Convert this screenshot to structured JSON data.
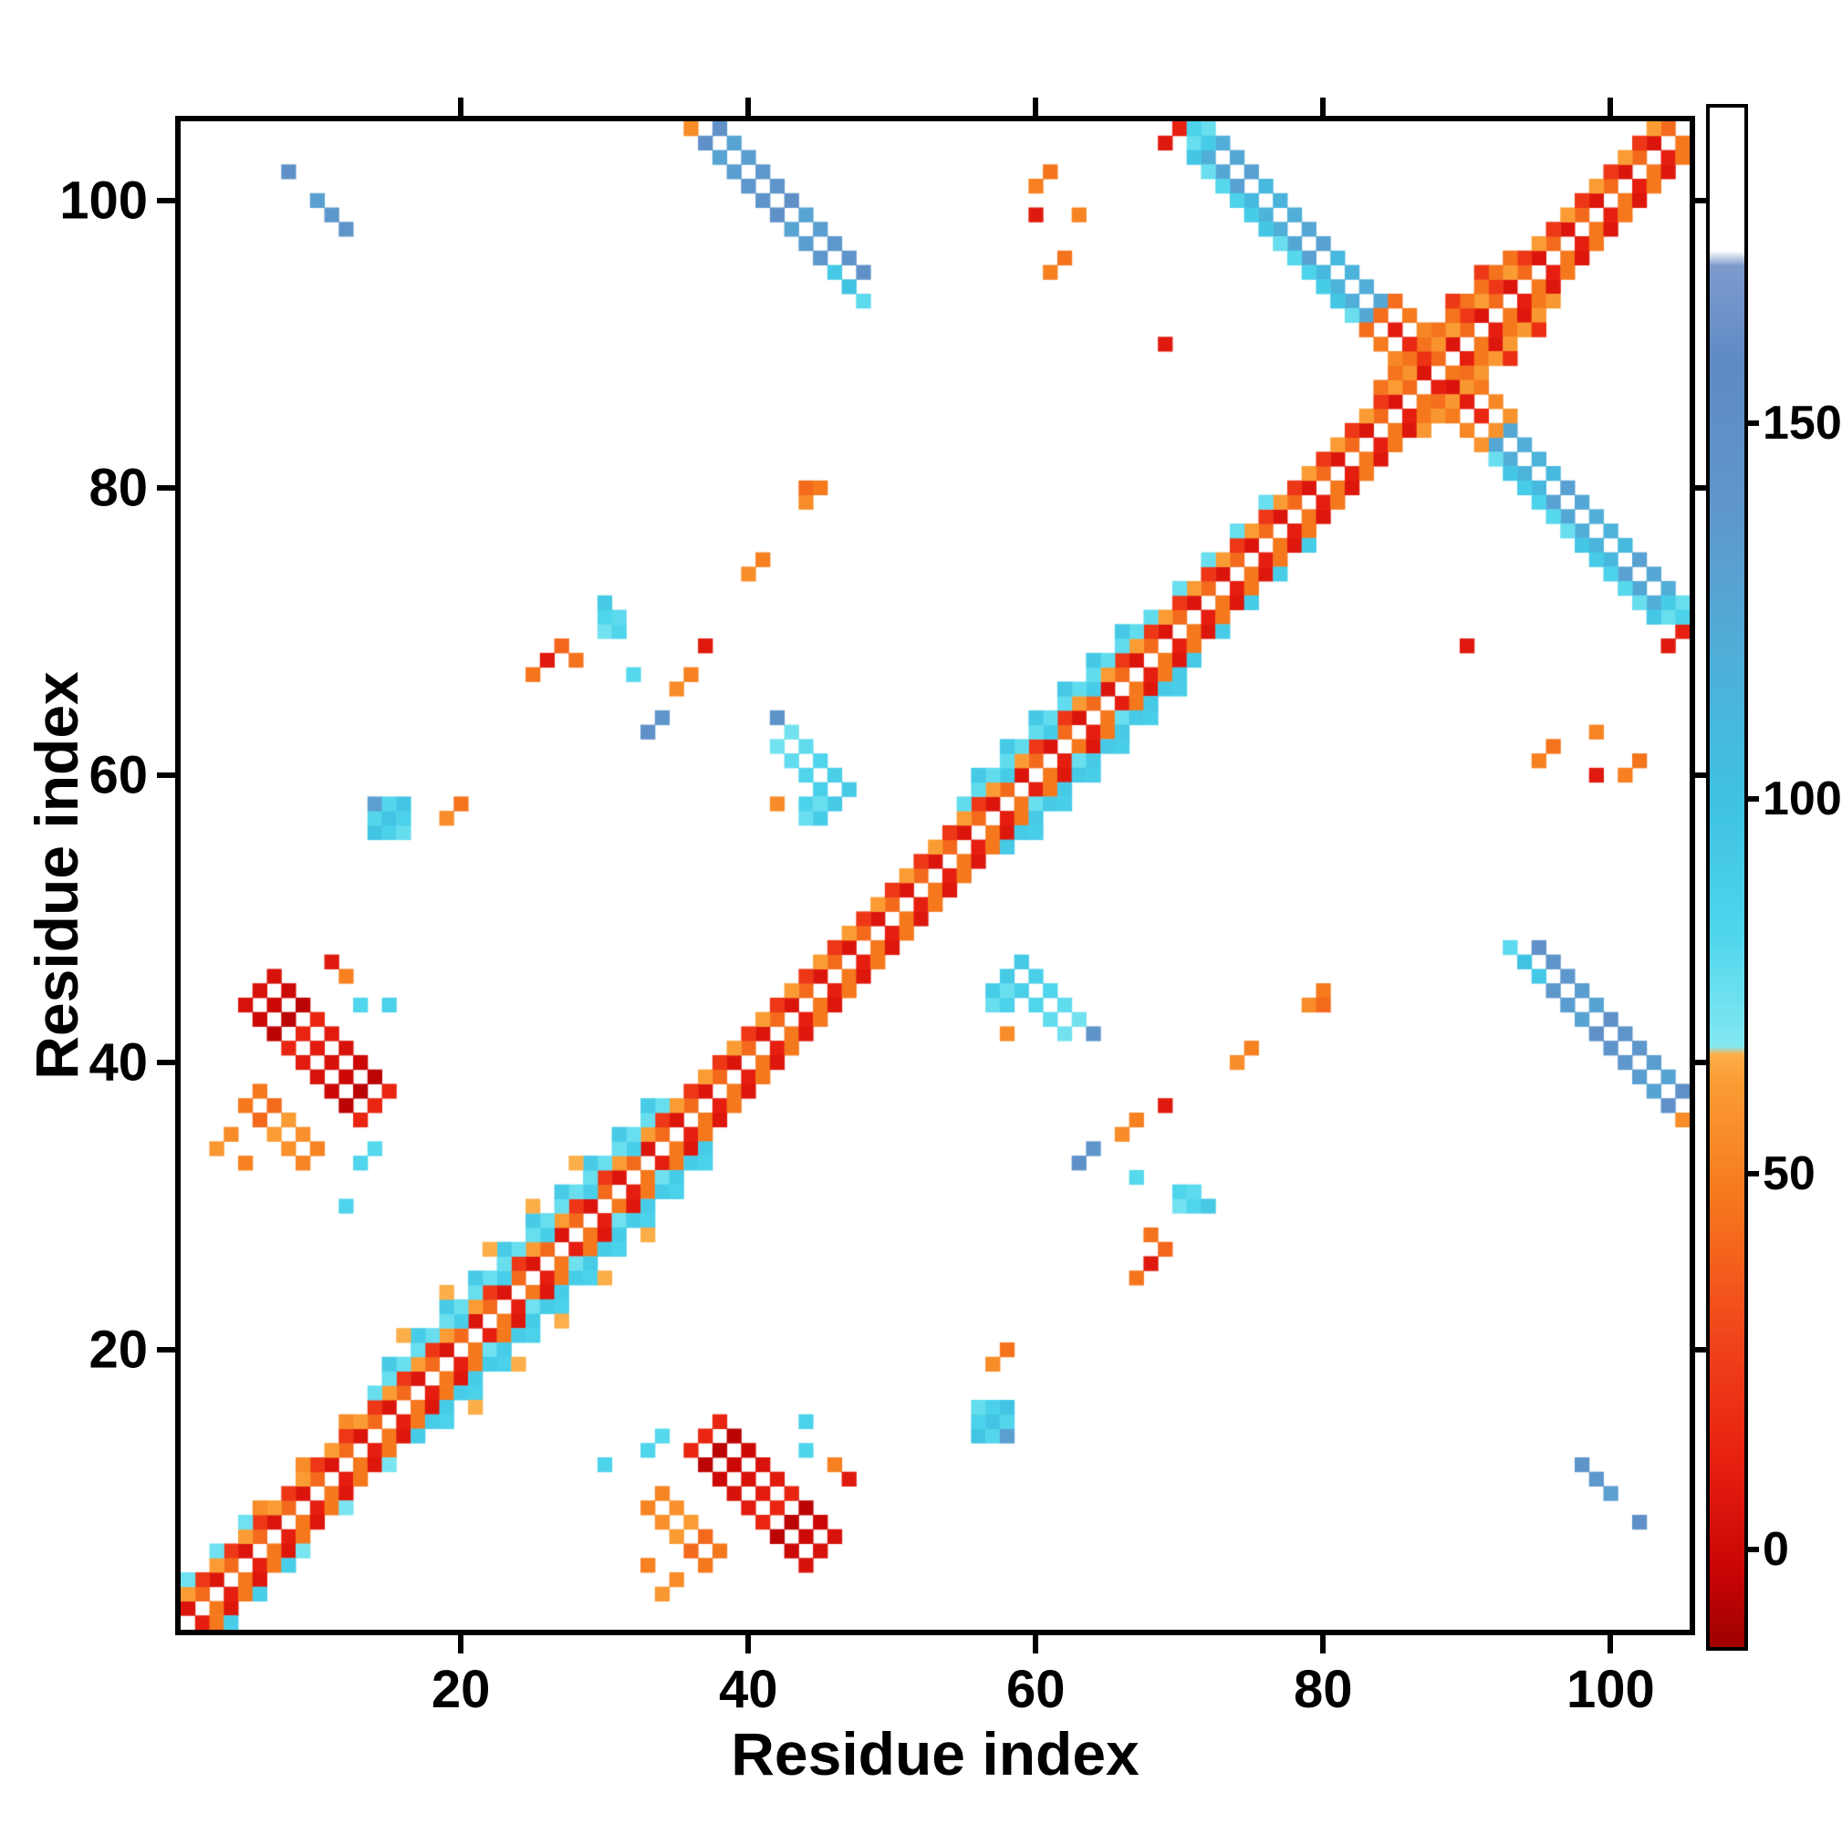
{
  "figure": {
    "background": "#ffffff"
  },
  "chart_data": {
    "type": "heatmap",
    "title": "",
    "xlabel": "Residue index",
    "ylabel": "Residue index",
    "x_range": [
      0.5,
      105.5
    ],
    "y_range": [
      0.5,
      105.5
    ],
    "n_residues": 105,
    "x_ticks": [
      20,
      40,
      60,
      80,
      100
    ],
    "y_ticks": [
      20,
      40,
      60,
      80,
      100
    ],
    "grid": false,
    "legend": "colorbar-right",
    "background_value_color": "#ffffff",
    "colorbar": {
      "ticks": [
        0,
        50,
        100,
        150
      ],
      "domain": [
        -13,
        192
      ],
      "stops": [
        [
          -13,
          "#9e0000"
        ],
        [
          -3,
          "#c80505"
        ],
        [
          12,
          "#e82010"
        ],
        [
          30,
          "#f1491c"
        ],
        [
          48,
          "#f67b1d"
        ],
        [
          62,
          "#fa9c33"
        ],
        [
          66,
          "#fcae49"
        ],
        [
          67,
          "#84e9f2"
        ],
        [
          82,
          "#4fd5ec"
        ],
        [
          100,
          "#3ec1e2"
        ],
        [
          118,
          "#4fb0da"
        ],
        [
          138,
          "#5e97cc"
        ],
        [
          158,
          "#5f8ac4"
        ],
        [
          171,
          "#7d9bcd"
        ],
        [
          173,
          "#ffffff"
        ],
        [
          192,
          "#ffffff"
        ]
      ]
    },
    "cells_encoding": "contact map, symmetric about main diagonal; diag_runs: cells (i,i+o) for i=f..t step s, mirrored; anti_runs: anti-diagonal runs from (x,y) length l, thickness t, m=mirror; rects: blocks; cells: [x,y,value,mirror]; value mapped through colorbar stops; main diagonal i=j is white",
    "diag_runs": [
      {
        "f": 1,
        "t": 104,
        "o": 1,
        "v": 6,
        "s": 2
      },
      {
        "f": 2,
        "t": 104,
        "o": 1,
        "v": 42,
        "s": 2
      },
      {
        "f": 1,
        "t": 103,
        "o": 2,
        "v": 52,
        "s": 2
      },
      {
        "f": 2,
        "t": 103,
        "o": 2,
        "v": 12,
        "s": 2
      },
      {
        "f": 3,
        "t": 12,
        "o": 3,
        "v": 60,
        "s": 3
      },
      {
        "f": 1,
        "t": 5,
        "o": 3,
        "v": 78,
        "s": 2
      },
      {
        "f": 14,
        "t": 34,
        "o": 3,
        "v": 80,
        "s": 1
      },
      {
        "f": 15,
        "t": 33,
        "o": 4,
        "v": 86,
        "s": 2
      },
      {
        "f": 16,
        "t": 30,
        "o": 5,
        "v": 76,
        "s": 3
      },
      {
        "f": 20,
        "t": 32,
        "o": 2,
        "v": 78,
        "s": 3
      },
      {
        "f": 55,
        "t": 68,
        "o": 3,
        "v": 82,
        "s": 1
      },
      {
        "f": 56,
        "t": 66,
        "o": 4,
        "v": 88,
        "s": 2
      },
      {
        "f": 58,
        "t": 66,
        "o": 2,
        "v": 80,
        "s": 3
      },
      {
        "f": 70,
        "t": 76,
        "o": 3,
        "v": 80,
        "s": 2
      },
      {
        "f": 84,
        "t": 93,
        "o": 3,
        "v": 50,
        "s": 1
      },
      {
        "f": 85,
        "t": 92,
        "o": 4,
        "v": 18,
        "s": 2
      }
    ],
    "anti_runs": [
      {
        "x": 70,
        "y": 105,
        "l": 14,
        "t": 2,
        "v": 120,
        "m": 1
      },
      {
        "x": 71,
        "y": 103,
        "l": 12,
        "t": 1,
        "v": 85,
        "m": 1
      },
      {
        "x": 84,
        "y": 92,
        "l": 9,
        "t": 3,
        "v": 48,
        "m": 0
      },
      {
        "x": 85,
        "y": 91,
        "l": 7,
        "t": 1,
        "v": 10,
        "m": 0
      },
      {
        "x": 36,
        "y": 105,
        "l": 12,
        "t": 2,
        "v": 138,
        "m": 1
      },
      {
        "x": 46,
        "y": 95,
        "l": 3,
        "t": 1,
        "v": 88,
        "m": 1
      },
      {
        "x": 37,
        "y": 14,
        "l": 9,
        "t": 3,
        "v": 4,
        "m": 1
      },
      {
        "x": 33,
        "y": 9,
        "l": 5,
        "t": 2,
        "v": 52,
        "m": 1
      },
      {
        "x": 42,
        "y": 62,
        "l": 5,
        "t": 2,
        "v": 82,
        "m": 1
      },
      {
        "x": 10,
        "y": 100,
        "l": 3,
        "t": 1,
        "v": 142,
        "m": 1
      }
    ],
    "rects": [
      {
        "x": 14,
        "y": 56,
        "w": 3,
        "h": 3,
        "v": 86,
        "m": 1
      },
      {
        "x": 44,
        "y": 57,
        "w": 2,
        "h": 2,
        "v": 80,
        "m": 1
      },
      {
        "x": 30,
        "y": 70,
        "w": 1,
        "h": 3,
        "v": 82,
        "m": 1
      },
      {
        "x": 71,
        "y": 104,
        "w": 2,
        "h": 2,
        "v": 80,
        "m": 1
      }
    ],
    "cells": [
      [
        8,
        102,
        148,
        1
      ],
      [
        33,
        13,
        82,
        1
      ],
      [
        34,
        14,
        80,
        1
      ],
      [
        30,
        12,
        84,
        1
      ],
      [
        46,
        12,
        50,
        1
      ],
      [
        47,
        11,
        8,
        1
      ],
      [
        14,
        58,
        132,
        1
      ],
      [
        19,
        57,
        52,
        1
      ],
      [
        33,
        63,
        148,
        1
      ],
      [
        34,
        64,
        140,
        1
      ],
      [
        64,
        42,
        144,
        1
      ],
      [
        25,
        67,
        46,
        1
      ],
      [
        26,
        68,
        10,
        1
      ],
      [
        35,
        66,
        55,
        1
      ],
      [
        36,
        67,
        50,
        1
      ],
      [
        37,
        69,
        8,
        1
      ],
      [
        40,
        74,
        56,
        1
      ],
      [
        41,
        75,
        50,
        1
      ],
      [
        44,
        79,
        55,
        1
      ],
      [
        45,
        80,
        48,
        1
      ],
      [
        44,
        80,
        42,
        1
      ],
      [
        57,
        19,
        55,
        1
      ],
      [
        58,
        20,
        45,
        1
      ],
      [
        67,
        32,
        80,
        1
      ],
      [
        70,
        31,
        82,
        1
      ],
      [
        71,
        31,
        78,
        1
      ],
      [
        68,
        28,
        45,
        1
      ],
      [
        69,
        27,
        40,
        1
      ],
      [
        68,
        26,
        8,
        1
      ],
      [
        60,
        101,
        50,
        1
      ],
      [
        61,
        102,
        46,
        1
      ],
      [
        63,
        99,
        52,
        1
      ],
      [
        60,
        99,
        8,
        1
      ],
      [
        95,
        61,
        50,
        1
      ],
      [
        96,
        62,
        45,
        1
      ],
      [
        69,
        104,
        8,
        1
      ],
      [
        70,
        105,
        12,
        1
      ],
      [
        90,
        69,
        8,
        1
      ],
      [
        42,
        58,
        55,
        1
      ],
      [
        3,
        34,
        60,
        1
      ],
      [
        4,
        35,
        55,
        1
      ],
      [
        5,
        33,
        50,
        1
      ],
      [
        13,
        44,
        82,
        1
      ],
      [
        15,
        44,
        86,
        1
      ],
      [
        105,
        36,
        55,
        1
      ]
    ]
  }
}
